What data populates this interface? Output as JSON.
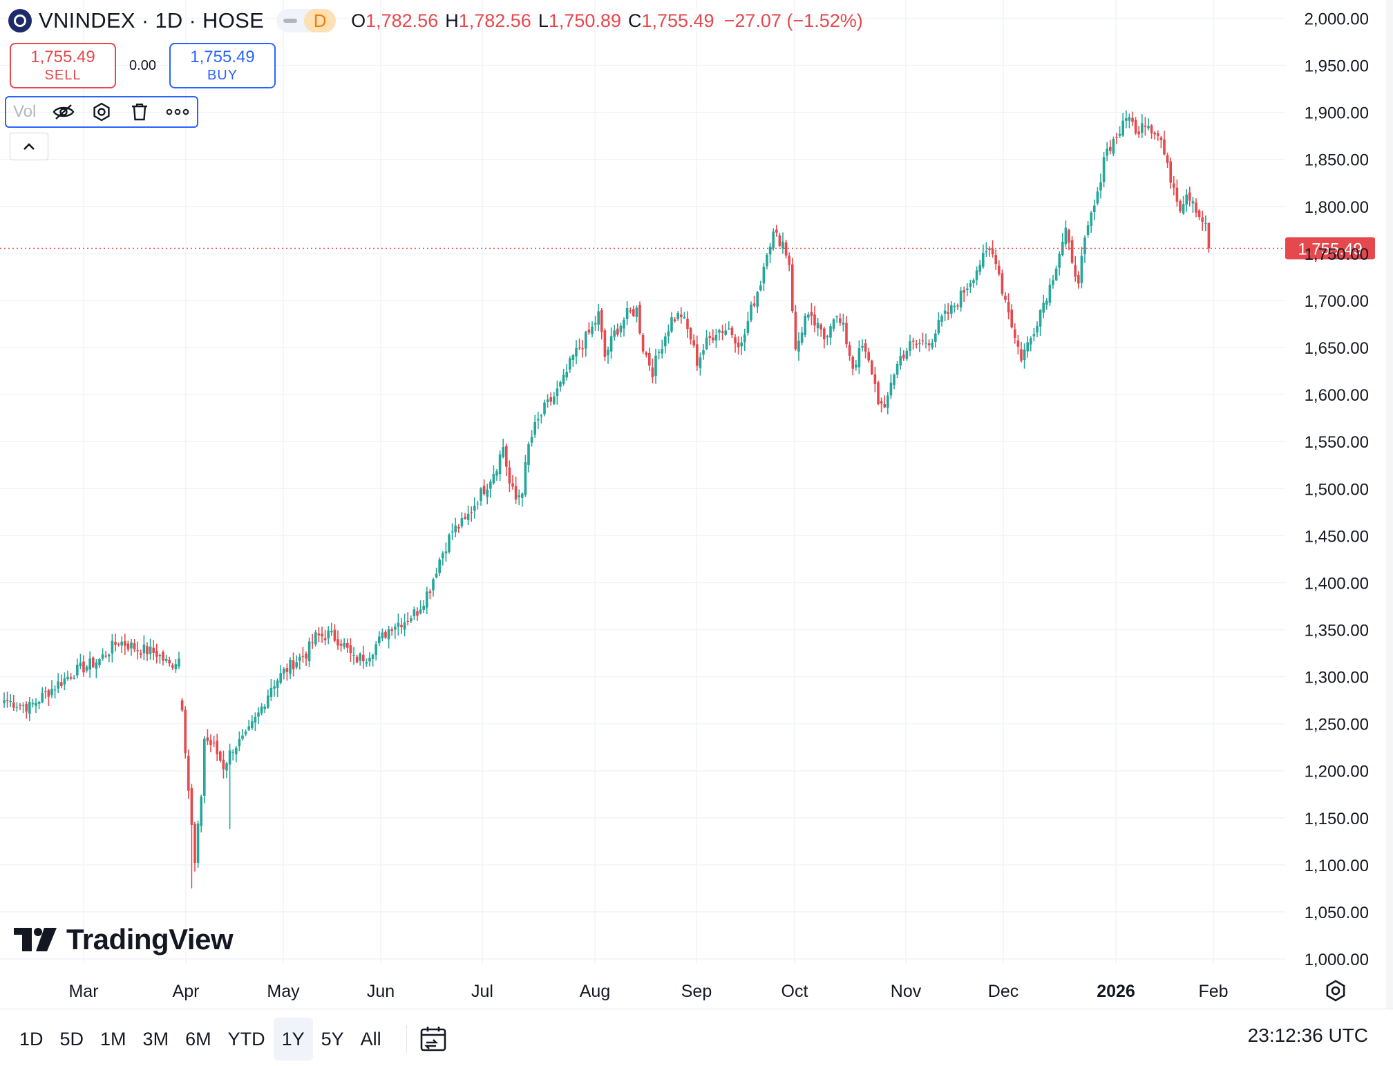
{
  "header": {
    "symbol": "VNINDEX · 1D · HOSE",
    "interval_badge": "D",
    "open_label": "O",
    "open": "1,782.56",
    "high_label": "H",
    "high": "1,782.56",
    "low_label": "L",
    "low": "1,750.89",
    "close_label": "C",
    "close": "1,755.49",
    "change": "−27.07 (−1.52%)"
  },
  "trade": {
    "sell_price": "1,755.49",
    "sell_label": "SELL",
    "spread": "0.00",
    "buy_price": "1,755.49",
    "buy_label": "BUY"
  },
  "indicator": {
    "name": "Vol",
    "icons": [
      "eye-off-icon",
      "settings-icon",
      "trash-icon",
      "more-icon"
    ]
  },
  "brand": "TradingView",
  "ranges": [
    "1D",
    "5D",
    "1M",
    "3M",
    "6M",
    "YTD",
    "1Y",
    "5Y",
    "All"
  ],
  "active_range": "1Y",
  "clock": "23:12:36 UTC",
  "colors": {
    "up": "#26a69a",
    "down": "#e5484d",
    "grid": "#f0f3fa",
    "accent": "#2962ff"
  },
  "chart_data": {
    "type": "candlestick",
    "y_ticks": [
      1000,
      1050,
      1100,
      1150,
      1200,
      1250,
      1300,
      1350,
      1400,
      1450,
      1500,
      1550,
      1600,
      1650,
      1700,
      1750,
      1800,
      1850,
      1900,
      1950,
      2000
    ],
    "ylim": [
      1000,
      2000
    ],
    "x_ticks": [
      "Mar",
      "Apr",
      "May",
      "Jun",
      "Jul",
      "Aug",
      "Sep",
      "Oct",
      "Nov",
      "Dec",
      "2026",
      "Feb"
    ],
    "last_price": 1755.49,
    "last_price_label": "1,755.49",
    "grid": true,
    "anchors": [
      [
        0,
        1275
      ],
      [
        8,
        1268
      ],
      [
        16,
        1290
      ],
      [
        22,
        1305
      ],
      [
        30,
        1318
      ],
      [
        36,
        1338
      ],
      [
        42,
        1330
      ],
      [
        48,
        1325
      ],
      [
        52,
        1312
      ],
      [
        55,
        1320
      ],
      [
        56,
        1270
      ],
      [
        58,
        1180
      ],
      [
        60,
        1100
      ],
      [
        62,
        1175
      ],
      [
        63,
        1235
      ],
      [
        66,
        1225
      ],
      [
        69,
        1205
      ],
      [
        72,
        1225
      ],
      [
        76,
        1235
      ],
      [
        80,
        1260
      ],
      [
        84,
        1290
      ],
      [
        88,
        1305
      ],
      [
        91,
        1315
      ],
      [
        95,
        1325
      ],
      [
        98,
        1342
      ],
      [
        102,
        1345
      ],
      [
        106,
        1338
      ],
      [
        110,
        1318
      ],
      [
        114,
        1322
      ],
      [
        118,
        1338
      ],
      [
        122,
        1355
      ],
      [
        126,
        1360
      ],
      [
        130,
        1370
      ],
      [
        134,
        1395
      ],
      [
        137,
        1425
      ],
      [
        141,
        1455
      ],
      [
        145,
        1465
      ],
      [
        149,
        1490
      ],
      [
        152,
        1505
      ],
      [
        155,
        1525
      ],
      [
        157,
        1545
      ],
      [
        159,
        1505
      ],
      [
        161,
        1488
      ],
      [
        163,
        1500
      ],
      [
        165,
        1545
      ],
      [
        167,
        1565
      ],
      [
        170,
        1585
      ],
      [
        173,
        1598
      ],
      [
        176,
        1615
      ],
      [
        179,
        1640
      ],
      [
        182,
        1655
      ],
      [
        185,
        1670
      ],
      [
        187,
        1685
      ],
      [
        189,
        1640
      ],
      [
        192,
        1665
      ],
      [
        196,
        1685
      ],
      [
        199,
        1690
      ],
      [
        201,
        1650
      ],
      [
        204,
        1625
      ],
      [
        207,
        1655
      ],
      [
        210,
        1680
      ],
      [
        213,
        1685
      ],
      [
        216,
        1660
      ],
      [
        218,
        1635
      ],
      [
        221,
        1655
      ],
      [
        224,
        1668
      ],
      [
        228,
        1670
      ],
      [
        232,
        1652
      ],
      [
        235,
        1690
      ],
      [
        238,
        1720
      ],
      [
        240,
        1755
      ],
      [
        242,
        1770
      ],
      [
        245,
        1762
      ],
      [
        247,
        1740
      ],
      [
        249,
        1645
      ],
      [
        252,
        1682
      ],
      [
        255,
        1675
      ],
      [
        258,
        1660
      ],
      [
        261,
        1685
      ],
      [
        264,
        1670
      ],
      [
        267,
        1630
      ],
      [
        270,
        1650
      ],
      [
        273,
        1625
      ],
      [
        275,
        1595
      ],
      [
        277,
        1580
      ],
      [
        279,
        1615
      ],
      [
        282,
        1640
      ],
      [
        285,
        1652
      ],
      [
        289,
        1655
      ],
      [
        292,
        1660
      ],
      [
        295,
        1680
      ],
      [
        298,
        1690
      ],
      [
        301,
        1705
      ],
      [
        304,
        1722
      ],
      [
        307,
        1740
      ],
      [
        310,
        1752
      ],
      [
        312,
        1745
      ],
      [
        314,
        1712
      ],
      [
        316,
        1690
      ],
      [
        318,
        1660
      ],
      [
        320,
        1640
      ],
      [
        323,
        1660
      ],
      [
        326,
        1690
      ],
      [
        329,
        1715
      ],
      [
        332,
        1752
      ],
      [
        334,
        1775
      ],
      [
        336,
        1735
      ],
      [
        338,
        1725
      ],
      [
        340,
        1760
      ],
      [
        342,
        1790
      ],
      [
        344,
        1810
      ],
      [
        346,
        1855
      ],
      [
        349,
        1870
      ],
      [
        352,
        1885
      ],
      [
        354,
        1900
      ],
      [
        356,
        1875
      ],
      [
        358,
        1892
      ],
      [
        360,
        1888
      ],
      [
        362,
        1880
      ],
      [
        364,
        1870
      ],
      [
        366,
        1840
      ],
      [
        368,
        1822
      ],
      [
        370,
        1800
      ],
      [
        372,
        1815
      ],
      [
        374,
        1808
      ],
      [
        376,
        1790
      ],
      [
        378,
        1782.56
      ],
      [
        379,
        1755.49
      ]
    ],
    "month_starts": [
      {
        "label": "Mar",
        "day": 14
      },
      {
        "label": "Apr",
        "day": 33
      },
      {
        "label": "May",
        "day": 51
      },
      {
        "label": "Jun",
        "day": 69
      },
      {
        "label": "Jul",
        "day": 88
      },
      {
        "label": "Aug",
        "day": 108
      },
      {
        "label": "Sep",
        "day": 127
      },
      {
        "label": "Oct",
        "day": 145
      },
      {
        "label": "Nov",
        "day": 166
      },
      {
        "label": "Dec",
        "day": 184
      },
      {
        "label": "2026",
        "day": 204
      },
      {
        "label": "Feb",
        "day": 222
      }
    ]
  }
}
